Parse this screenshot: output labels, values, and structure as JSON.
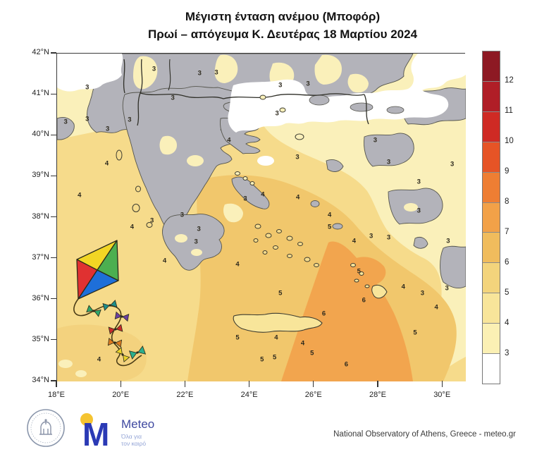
{
  "title": {
    "line1": "Μέγιστη ένταση ανέμου (Μποφόρ)",
    "line2": "Πρωί – απόγευμα Κ. Δευτέρας 18 Μαρτίου 2024"
  },
  "axes": {
    "lat": [
      "42°N",
      "41°N",
      "40°N",
      "39°N",
      "38°N",
      "37°N",
      "36°N",
      "35°N",
      "34°N"
    ],
    "lon": [
      "18°E",
      "20°E",
      "22°E",
      "24°E",
      "26°E",
      "28°E",
      "30°E"
    ]
  },
  "colorbar": {
    "labels_top_to_bottom": [
      "12",
      "11",
      "10",
      "9",
      "8",
      "7",
      "6",
      "5",
      "4",
      "3"
    ],
    "segments_bottom_to_top": [
      "#ffffff",
      "#FBF0B4",
      "#F8E59A",
      "#F3D47C",
      "#F0BC5D",
      "#F2A148",
      "#EE7E33",
      "#E65426",
      "#CF2A24",
      "#B01E27",
      "#8D1923"
    ]
  },
  "map_values": [
    {
      "v": "3",
      "x": 23.8,
      "y": 4.7
    },
    {
      "v": "3",
      "x": 35.0,
      "y": 6.0
    },
    {
      "v": "3",
      "x": 39.1,
      "y": 5.8
    },
    {
      "v": "3",
      "x": 54.8,
      "y": 9.7
    },
    {
      "v": "3",
      "x": 61.6,
      "y": 9.2
    },
    {
      "v": "3",
      "x": 7.4,
      "y": 10.3
    },
    {
      "v": "3",
      "x": 28.4,
      "y": 13.5
    },
    {
      "v": "3",
      "x": 54.0,
      "y": 18.3
    },
    {
      "v": "3",
      "x": 2.1,
      "y": 20.9
    },
    {
      "v": "3",
      "x": 7.4,
      "y": 20.0
    },
    {
      "v": "3",
      "x": 17.8,
      "y": 20.4
    },
    {
      "v": "3",
      "x": 12.4,
      "y": 23.2
    },
    {
      "v": "4",
      "x": 42.2,
      "y": 26.5
    },
    {
      "v": "3",
      "x": 78.1,
      "y": 26.5
    },
    {
      "v": "3",
      "x": 59.0,
      "y": 31.8
    },
    {
      "v": "3",
      "x": 81.4,
      "y": 33.3
    },
    {
      "v": "3",
      "x": 97.0,
      "y": 34.0
    },
    {
      "v": "4",
      "x": 12.2,
      "y": 33.8
    },
    {
      "v": "3",
      "x": 88.8,
      "y": 39.4
    },
    {
      "v": "4",
      "x": 5.5,
      "y": 43.4
    },
    {
      "v": "4",
      "x": 50.5,
      "y": 43.2
    },
    {
      "v": "4",
      "x": 59.1,
      "y": 44.1
    },
    {
      "v": "3",
      "x": 46.2,
      "y": 44.5
    },
    {
      "v": "3",
      "x": 88.8,
      "y": 48.2
    },
    {
      "v": "4",
      "x": 66.9,
      "y": 49.5
    },
    {
      "v": "3",
      "x": 23.3,
      "y": 51.2
    },
    {
      "v": "3",
      "x": 30.7,
      "y": 49.5
    },
    {
      "v": "4",
      "x": 18.4,
      "y": 53.1
    },
    {
      "v": "3",
      "x": 34.8,
      "y": 53.8
    },
    {
      "v": "5",
      "x": 66.9,
      "y": 53.1
    },
    {
      "v": "3",
      "x": 77.1,
      "y": 55.9
    },
    {
      "v": "3",
      "x": 81.4,
      "y": 56.3
    },
    {
      "v": "3",
      "x": 96.0,
      "y": 57.4
    },
    {
      "v": "3",
      "x": 34.1,
      "y": 57.6
    },
    {
      "v": "4",
      "x": 72.9,
      "y": 57.4
    },
    {
      "v": "4",
      "x": 26.4,
      "y": 63.4
    },
    {
      "v": "4",
      "x": 44.3,
      "y": 64.5
    },
    {
      "v": "5",
      "x": 74.1,
      "y": 66.7
    },
    {
      "v": "4",
      "x": 85.0,
      "y": 71.4
    },
    {
      "v": "3",
      "x": 89.7,
      "y": 73.5
    },
    {
      "v": "3",
      "x": 95.7,
      "y": 72.0
    },
    {
      "v": "5",
      "x": 54.8,
      "y": 73.5
    },
    {
      "v": "6",
      "x": 75.3,
      "y": 75.7
    },
    {
      "v": "4",
      "x": 93.1,
      "y": 77.8
    },
    {
      "v": "6",
      "x": 65.5,
      "y": 79.6
    },
    {
      "v": "5",
      "x": 87.9,
      "y": 85.6
    },
    {
      "v": "4",
      "x": 53.8,
      "y": 87.1
    },
    {
      "v": "5",
      "x": 44.3,
      "y": 87.1
    },
    {
      "v": "4",
      "x": 60.3,
      "y": 88.8
    },
    {
      "v": "5",
      "x": 62.6,
      "y": 91.8
    },
    {
      "v": "5",
      "x": 53.4,
      "y": 93.1
    },
    {
      "v": "5",
      "x": 50.3,
      "y": 93.8
    },
    {
      "v": "6",
      "x": 71.0,
      "y": 95.3
    },
    {
      "v": "4",
      "x": 10.3,
      "y": 93.8
    }
  ],
  "map_colors": {
    "sea_4_5": "#F6DB8B",
    "sea_3_4_pale": "#FAF0BA",
    "sea_5_6_gold": "#F1C76C",
    "sea_6_7_orange": "#F2A54E",
    "calm_white": "#FFFFFF",
    "land_gray": "#B3B3BA"
  },
  "kite": {
    "panel_colors": [
      "#F2D624",
      "#4CAF50",
      "#E03131",
      "#1E6FD9"
    ],
    "bow_colors": [
      "#2FA86B",
      "#1C8E8A",
      "#6A3FA0",
      "#C92B2B",
      "#E07B1F",
      "#E8D22A",
      "#2BAE8C"
    ]
  },
  "footer": {
    "credit": "National Observatory of Athens, Greece - meteo.gr",
    "meteo_name": "Meteo",
    "meteo_tagline_line1": "Όλα για",
    "meteo_tagline_line2": "τον καιρό",
    "meteo_blue": "#2B3AB5",
    "meteo_yellow": "#F5C431"
  }
}
